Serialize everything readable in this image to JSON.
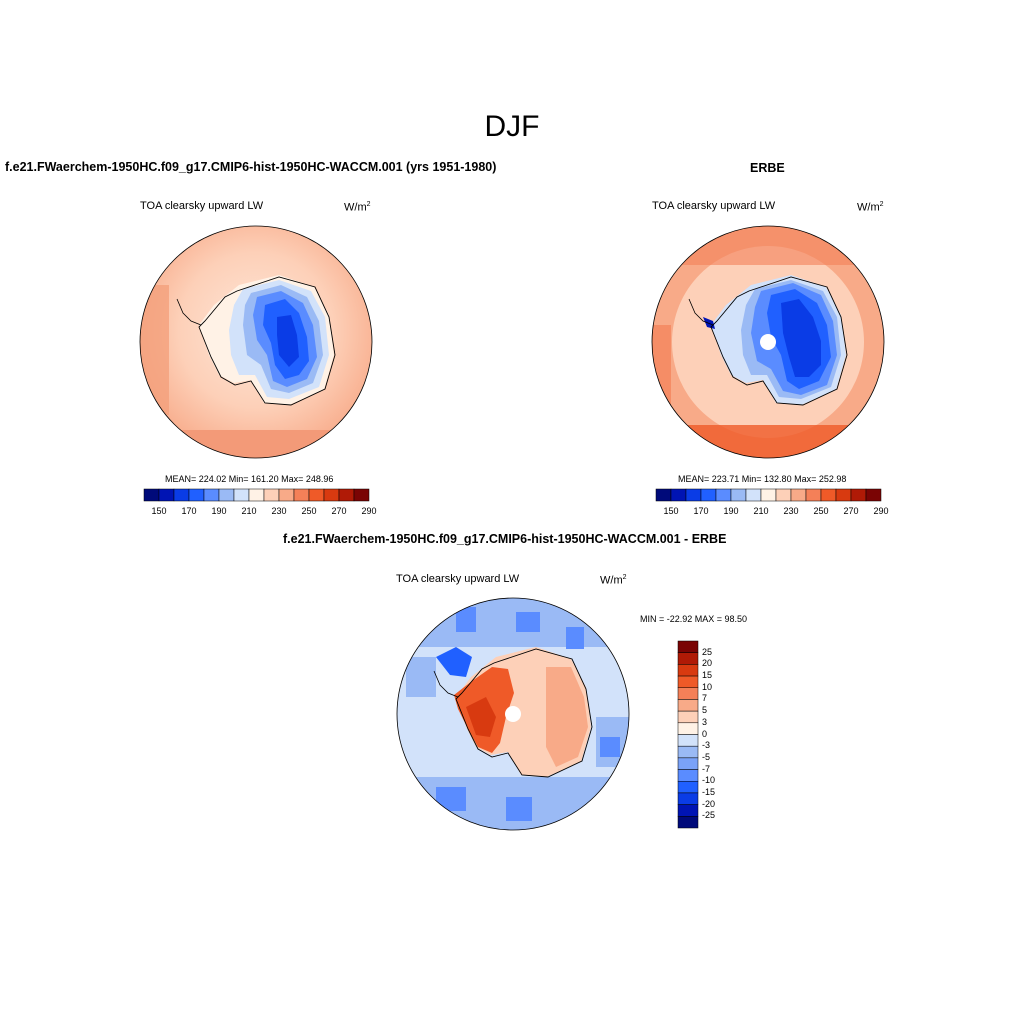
{
  "season": "DJF",
  "units_base": "W/m",
  "units_exp": "2",
  "panels": {
    "model": {
      "title": "f.e21.FWaerchem-1950HC.f09_g17.CMIP6-hist-1950HC-WACCM.001 (yrs 1951-1980)",
      "variable": "TOA clearsky upward LW",
      "stats": "MEAN= 224.02  Min= 161.20  Max= 248.96"
    },
    "obs": {
      "title": "ERBE",
      "variable": "TOA clearsky upward LW",
      "stats": "MEAN= 223.71  Min= 132.80  Max= 252.98"
    },
    "diff": {
      "title": "f.e21.FWaerchem-1950HC.f09_g17.CMIP6-hist-1950HC-WACCM.001 - ERBE",
      "variable": "TOA clearsky upward LW",
      "stats": "MIN = -22.92 MAX =  98.50"
    }
  },
  "colorbars": {
    "abs": {
      "levels": [
        "150",
        "170",
        "190",
        "210",
        "230",
        "250",
        "270",
        "290"
      ],
      "colors": [
        "#000a7a",
        "#0014b4",
        "#0a3ce6",
        "#2060ff",
        "#5a8cff",
        "#9abaf5",
        "#d2e2fa",
        "#fff2e6",
        "#fdd0b8",
        "#f8aa88",
        "#f48058",
        "#ef5a28",
        "#d83a10",
        "#b01a06",
        "#7a0404"
      ]
    },
    "diff": {
      "levels": [
        "25",
        "20",
        "15",
        "10",
        "7",
        "5",
        "3",
        "0",
        "-3",
        "-5",
        "-7",
        "-10",
        "-15",
        "-20",
        "-25"
      ],
      "colors": [
        "#7a0404",
        "#b01a06",
        "#d83a10",
        "#ef5a28",
        "#f48058",
        "#f8aa88",
        "#fdd0b8",
        "#fff2e6",
        "#d2e2fa",
        "#9abaf5",
        "#7aa2f8",
        "#5a8cff",
        "#2060ff",
        "#0a3ce6",
        "#0014b4",
        "#000a7a"
      ]
    }
  }
}
